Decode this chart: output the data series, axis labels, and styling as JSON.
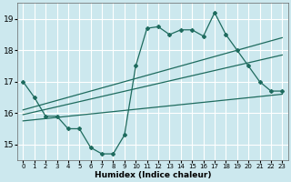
{
  "xlabel": "Humidex (Indice chaleur)",
  "background_color": "#cce8ee",
  "grid_color": "#ffffff",
  "line_color": "#1e6b5e",
  "xlim": [
    -0.5,
    23.5
  ],
  "ylim": [
    14.5,
    19.5
  ],
  "yticks": [
    15,
    16,
    17,
    18,
    19
  ],
  "xticks": [
    0,
    1,
    2,
    3,
    4,
    5,
    6,
    7,
    8,
    9,
    10,
    11,
    12,
    13,
    14,
    15,
    16,
    17,
    18,
    19,
    20,
    21,
    22,
    23
  ],
  "line1_x": [
    0,
    1,
    2,
    3,
    4,
    5,
    6,
    7,
    8,
    9,
    10,
    11,
    12,
    13,
    14,
    15,
    16,
    17,
    18,
    19,
    20,
    21,
    22,
    23
  ],
  "line1_y": [
    17.0,
    16.5,
    15.9,
    15.9,
    15.5,
    15.5,
    14.9,
    14.7,
    14.7,
    15.3,
    17.5,
    18.7,
    18.75,
    18.5,
    18.65,
    18.65,
    18.45,
    19.2,
    18.5,
    18.0,
    17.5,
    17.0,
    16.7,
    16.7
  ],
  "line2_x": [
    0,
    23
  ],
  "line2_y": [
    16.1,
    18.4
  ],
  "line3_x": [
    0,
    23
  ],
  "line3_y": [
    15.95,
    17.85
  ],
  "line4_x": [
    0,
    23
  ],
  "line4_y": [
    15.75,
    16.6
  ]
}
